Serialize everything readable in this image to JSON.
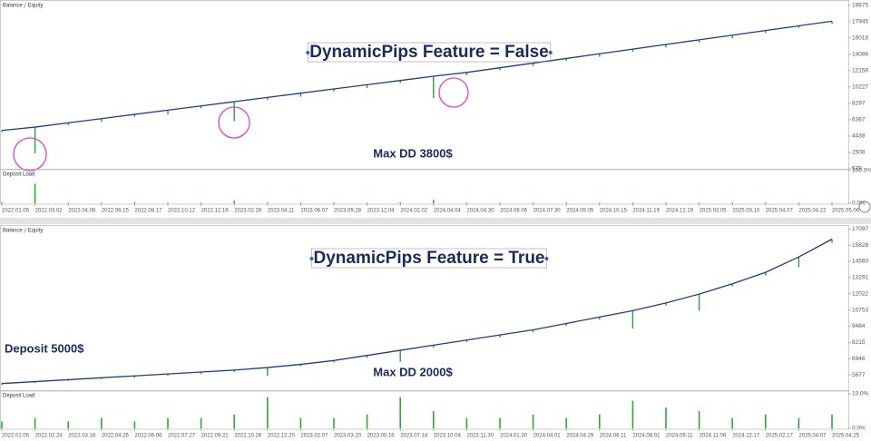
{
  "chart_data": [
    {
      "type": "line",
      "title": "DynamicPips Feature = False",
      "annotations": [
        "Max DD 3800$"
      ],
      "categories": [
        "2022.01.05",
        "2022.03.02",
        "2022.04.06",
        "2022.06.15",
        "2022.08.17",
        "2022.10.12",
        "2022.12.19",
        "2023.02.28",
        "2023.04.11",
        "2023.06.07",
        "2023.09.28",
        "2023.12.04",
        "2024.02.02",
        "2024.04.04",
        "2024.04.30",
        "2024.06.06",
        "2024.07.30",
        "2024.09.05",
        "2024.10.15",
        "2024.11.19",
        "2024.12.19",
        "2025.02.05",
        "2025.03.10",
        "2025.04.07",
        "2025.04.22",
        "2025.05.06"
      ],
      "series": [
        {
          "name": "Balance",
          "color": "#1f3f7a",
          "values": [
            5100,
            5500,
            6000,
            6500,
            7000,
            7500,
            8000,
            8500,
            9000,
            9500,
            10000,
            10500,
            11000,
            11500,
            11950,
            12500,
            13050,
            13600,
            14150,
            14700,
            15250,
            15800,
            16350,
            16900,
            17450,
            18000
          ]
        },
        {
          "name": "Equity",
          "color": "#2e9e3a",
          "values": [
            4900,
            2400,
            5700,
            6100,
            6700,
            7000,
            7700,
            6200,
            8700,
            9100,
            9700,
            10100,
            10700,
            8900,
            11600,
            12200,
            12700,
            13300,
            13800,
            14400,
            14900,
            15500,
            16000,
            16600,
            17200,
            17700
          ]
        }
      ],
      "ylim": [
        579,
        20500
      ],
      "yticks": [
        579,
        2508,
        4438,
        6367,
        8297,
        10227,
        12156,
        14086,
        16016,
        17945,
        19875
      ],
      "deposit_load": {
        "title": "Deposit Load",
        "color": "#2ea82e",
        "values": [
          3,
          60,
          2,
          2,
          3,
          2,
          2,
          8,
          2,
          2,
          2,
          2,
          3,
          10,
          2,
          2,
          2,
          2,
          2,
          2,
          2,
          2,
          2,
          2,
          2,
          2
        ],
        "ylim": [
          0,
          100
        ],
        "yticks": [
          {
            "value": 0,
            "label": "0.0%"
          },
          {
            "value": 100,
            "label": "100.0%"
          }
        ]
      }
    },
    {
      "type": "line",
      "title": "DynamicPips Feature = True",
      "annotations": [
        "Deposit 5000$",
        "Max DD 2000$"
      ],
      "categories": [
        "2022.01.05",
        "2022.02.24",
        "2022.03.16",
        "2022.04.26",
        "2022.06.06",
        "2022.07.27",
        "2022.09.21",
        "2022.10.26",
        "2022.12.20",
        "2023.02.07",
        "2023.03.20",
        "2023.05.16",
        "2023.07.14",
        "2023.10.04",
        "2023.11.30",
        "2024.01.30",
        "2024.04.01",
        "2024.04.29",
        "2024.06.11",
        "2024.08.01",
        "2024.09.11",
        "2024.11.06",
        "2024.12.17",
        "2025.02.17",
        "2025.04.07",
        "2025.04.25"
      ],
      "series": [
        {
          "name": "Balance",
          "color": "#1f3f7a",
          "values": [
            5000,
            5150,
            5300,
            5450,
            5600,
            5750,
            5900,
            6050,
            6250,
            6500,
            6800,
            7200,
            7600,
            8000,
            8400,
            8800,
            9200,
            9700,
            10200,
            10700,
            11300,
            12000,
            12800,
            13700,
            14900,
            16300
          ]
        },
        {
          "name": "Equity",
          "color": "#2e9e3a",
          "values": [
            4900,
            5050,
            5200,
            5350,
            5450,
            5600,
            5750,
            5900,
            5600,
            6350,
            6650,
            7000,
            6700,
            7800,
            8250,
            8600,
            9000,
            9500,
            10000,
            9300,
            11100,
            10700,
            12600,
            13450,
            14100,
            16000
          ]
        }
      ],
      "ylim": [
        4480,
        17400
      ],
      "yticks": [
        5677,
        6946,
        8215,
        9484,
        10753,
        12022,
        13291,
        14560,
        15828,
        17097
      ],
      "deposit_load": {
        "title": "Deposit Load",
        "color": "#2ea82e",
        "values": [
          2,
          3,
          2,
          3,
          2,
          3,
          3,
          4,
          9,
          3,
          3,
          4,
          9,
          5,
          3,
          3,
          4,
          3,
          4,
          8,
          6,
          5,
          3,
          4,
          3,
          4
        ],
        "ylim": [
          0,
          10
        ],
        "yticks": [
          {
            "value": 0,
            "label": "0.0%"
          },
          {
            "value": 10,
            "label": "10.0%"
          }
        ]
      }
    }
  ]
}
